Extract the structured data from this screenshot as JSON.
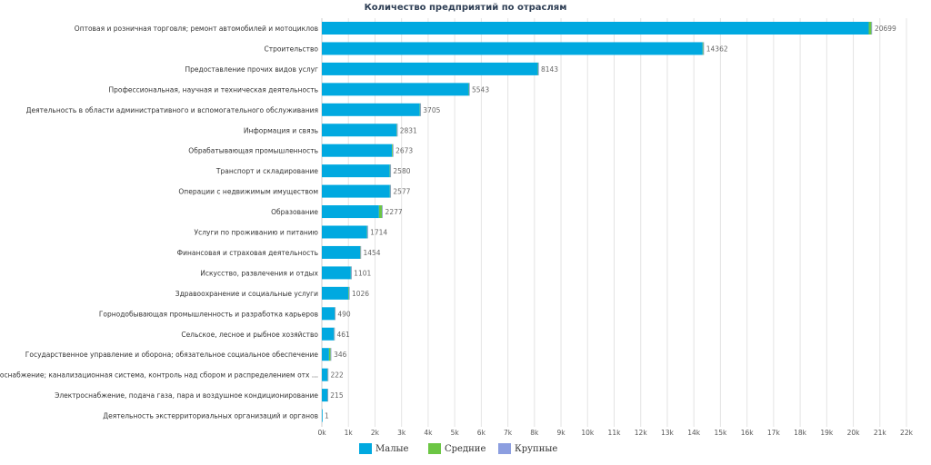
{
  "chart_data": {
    "type": "bar",
    "orientation": "horizontal",
    "stacked": true,
    "title": "Количество предприятий по отраслям",
    "categories": [
      "Оптовая и розничная торговля; ремонт автомобилей и мотоциклов",
      "Строительство",
      "Предоставление прочих видов услуг",
      "Профессиональная, научная и техническая деятельность",
      "Деятельность в области административного и вспомогательного обслуживания",
      "Информация и связь",
      "Обрабатывающая промышленность",
      "Транспорт и складирование",
      "Операции с недвижимым имуществом",
      "Образование",
      "Услуги по проживанию и питанию",
      "Финансовая и страховая деятельность",
      "Искусство, развлечения и отдых",
      "Здравоохранение и социальные услуги",
      "Горнодобывающая промышленность и разработка карьеров",
      "Сельское, лесное и рыбное хозяйство",
      "Государственное управление и оборона; обязательное социальное обеспечение",
      "Водоснабжение; канализационная система, контроль над сбором и распределением отх ...",
      "Электроснабжение, подача газа, пара и воздушное кондиционирование",
      "Деятельность экстерриториальных организаций и органов"
    ],
    "totals": [
      "20699",
      "14362",
      "8143",
      "5543",
      "3705",
      "2831",
      "2673",
      "2580",
      "2577",
      "2277",
      "1714",
      "1454",
      "1101",
      "1026",
      "490",
      "461",
      "346",
      "222",
      "215",
      "1"
    ],
    "series": [
      {
        "name": "Малые",
        "color": "#00a9e0",
        "values": [
          20580,
          14330,
          8125,
          5525,
          3685,
          2815,
          2640,
          2555,
          2560,
          2150,
          1700,
          1440,
          1090,
          1000,
          480,
          455,
          270,
          210,
          205,
          1
        ]
      },
      {
        "name": "Средние",
        "color": "#6cc644",
        "values": [
          100,
          25,
          15,
          15,
          18,
          14,
          28,
          20,
          14,
          115,
          12,
          12,
          9,
          22,
          8,
          5,
          60,
          10,
          8,
          0
        ]
      },
      {
        "name": "Крупные",
        "color": "#8c9ee0",
        "values": [
          19,
          7,
          3,
          3,
          2,
          2,
          5,
          5,
          3,
          12,
          2,
          2,
          2,
          4,
          2,
          1,
          16,
          2,
          2,
          0
        ]
      }
    ],
    "xlim": [
      0,
      22000
    ],
    "xticks": [
      "0k",
      "1k",
      "2k",
      "3k",
      "4k",
      "5k",
      "6k",
      "7k",
      "8k",
      "9k",
      "10k",
      "11k",
      "12k",
      "13k",
      "14k",
      "15k",
      "16k",
      "17k",
      "18k",
      "19k",
      "20k",
      "21k",
      "22k"
    ],
    "grid": true,
    "legend_position": "bottom"
  }
}
